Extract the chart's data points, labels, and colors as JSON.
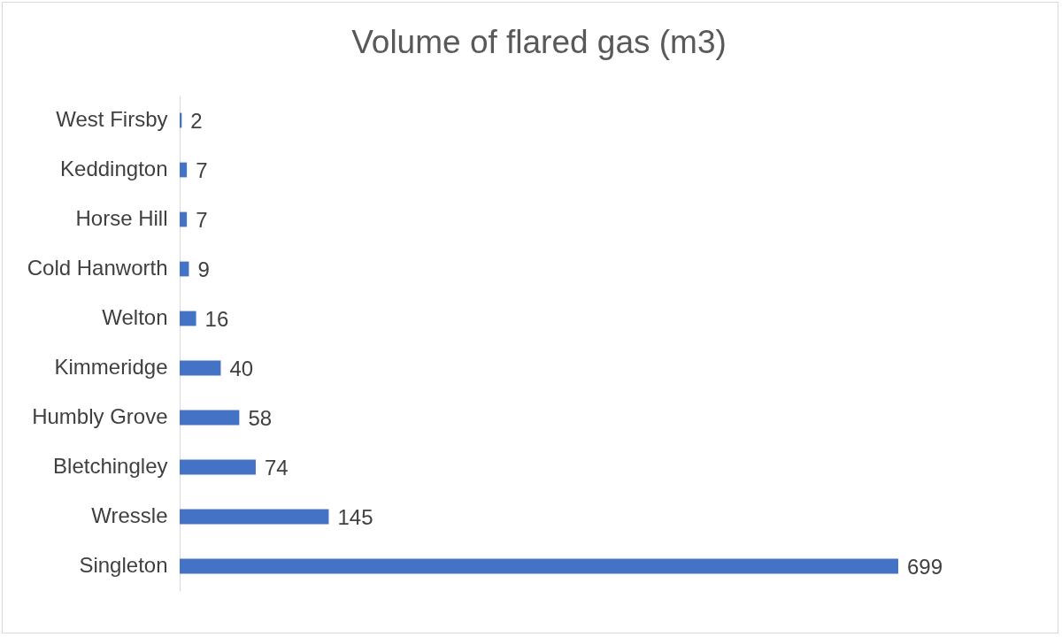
{
  "chart_data": {
    "type": "bar",
    "orientation": "horizontal",
    "title": "Volume of flared gas (m3)",
    "categories": [
      "West Firsby",
      "Keddington",
      "Horse Hill",
      "Cold Hanworth",
      "Welton",
      "Kimmeridge",
      "Humbly Grove",
      "Bletchingley",
      "Wressle",
      "Singleton"
    ],
    "values": [
      2,
      7,
      7,
      9,
      16,
      40,
      58,
      74,
      145,
      699
    ],
    "color": "#4472c4",
    "data_labels": true
  }
}
